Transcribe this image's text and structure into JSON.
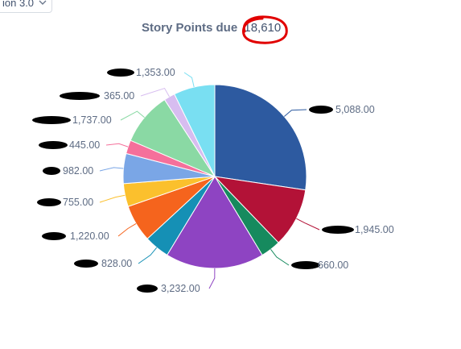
{
  "toolbar": {
    "dropdown_label": "ion 3.0"
  },
  "chart_data": {
    "type": "pie",
    "title": "Story Points due",
    "total": "18,610",
    "slices": [
      {
        "label": "5,088.00",
        "value": 5088,
        "color": "#2d5aa0"
      },
      {
        "label": "1,945.00",
        "value": 1945,
        "color": "#b31237"
      },
      {
        "label": "660.00",
        "value": 660,
        "color": "#168a5e"
      },
      {
        "label": "3,232.00",
        "value": 3232,
        "color": "#8e44c2"
      },
      {
        "label": "828.00",
        "value": 828,
        "color": "#1590b5"
      },
      {
        "label": "1,220.00",
        "value": 1220,
        "color": "#f5641d"
      },
      {
        "label": "755.00",
        "value": 755,
        "color": "#fbc02d"
      },
      {
        "label": "982.00",
        "value": 982,
        "color": "#7aa6e6"
      },
      {
        "label": "445.00",
        "value": 445,
        "color": "#f5709b"
      },
      {
        "label": "1,737.00",
        "value": 1737,
        "color": "#8ad9a4"
      },
      {
        "label": "365.00",
        "value": 365,
        "color": "#d7bdf0"
      },
      {
        "label": "1,353.00",
        "value": 1353,
        "color": "#79dff2"
      }
    ]
  },
  "annotation": {
    "circle_color": "#e10000"
  }
}
